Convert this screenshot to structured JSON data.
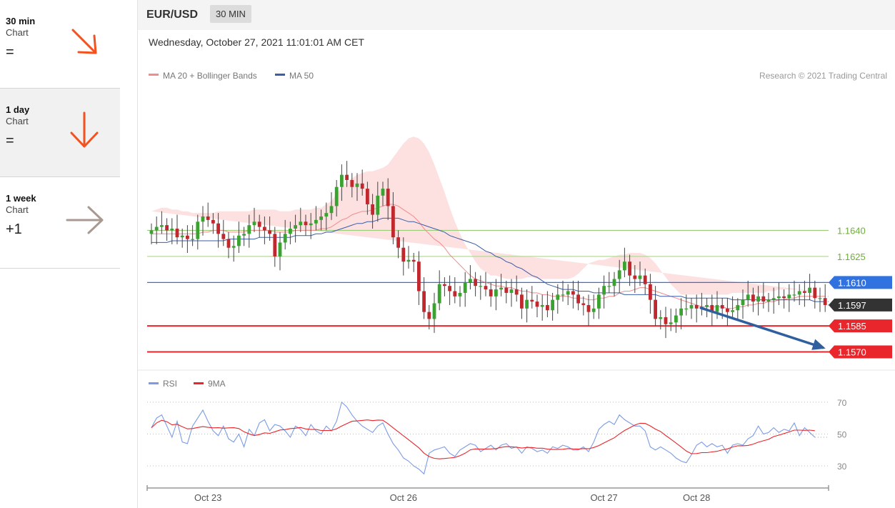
{
  "sidebar": {
    "items": [
      {
        "timeframe": "30 min",
        "label": "Chart",
        "symbol": "=",
        "arrow_color": "#f4511e",
        "arrow": "arrow-down-right-icon"
      },
      {
        "timeframe": "1 day",
        "label": "Chart",
        "symbol": "=",
        "arrow_color": "#f4511e",
        "arrow": "arrow-down-icon"
      },
      {
        "timeframe": "1 week",
        "label": "Chart",
        "symbol": "+1",
        "arrow_color": "#a89a90",
        "arrow": "arrow-right-icon"
      }
    ]
  },
  "header": {
    "pair": "EUR/USD",
    "timeframe_badge": "30 MIN",
    "datetime": "Wednesday, October 27, 2021 11:01:01 AM CET"
  },
  "chart_data": [
    {
      "type": "candlestick",
      "legend": [
        {
          "name": "MA 20 + Bollinger Bands",
          "color": "#f28c8c"
        },
        {
          "name": "MA 50",
          "color": "#3b5ea8"
        }
      ],
      "copyright": "Research © 2021 Trading Central",
      "ylim": [
        1.1562,
        1.172
      ],
      "x_ticks": [
        {
          "index": 11,
          "label": "Oct 23"
        },
        {
          "index": 49,
          "label": "Oct 26"
        },
        {
          "index": 88,
          "label": "Oct 27"
        },
        {
          "index": 106,
          "label": "Oct 28"
        }
      ],
      "levels": [
        {
          "value": 1.164,
          "label": "1.1640",
          "color": "#9bcc7a",
          "style": "line"
        },
        {
          "value": 1.1625,
          "label": "1.1625",
          "color": "#b7d99a",
          "style": "line"
        },
        {
          "value": 1.161,
          "label": "1.1610",
          "color": "#2f72e0",
          "style": "badge"
        },
        {
          "value": 1.1597,
          "label": "1.1597",
          "color": "#333333",
          "style": "badge-current"
        },
        {
          "value": 1.1585,
          "label": "1.1585",
          "color": "#e8262b",
          "style": "badge-thick"
        },
        {
          "value": 1.157,
          "label": "1.1570",
          "color": "#e8262b",
          "style": "badge-thick"
        }
      ],
      "forecast_arrow": {
        "from_index": 106,
        "from_value": 1.1597,
        "to_index": 116,
        "to_value": 1.157,
        "color": "#2f5f9e"
      },
      "series": {
        "close": [
          1.164,
          1.1642,
          1.1643,
          1.164,
          1.1641,
          1.1636,
          1.1637,
          1.1635,
          1.1635,
          1.1645,
          1.1648,
          1.1646,
          1.1644,
          1.1638,
          1.1635,
          1.163,
          1.1631,
          1.1637,
          1.1638,
          1.1643,
          1.1645,
          1.1642,
          1.164,
          1.1638,
          1.1625,
          1.1633,
          1.1638,
          1.1641,
          1.1643,
          1.1645,
          1.1643,
          1.1644,
          1.1646,
          1.1648,
          1.165,
          1.1654,
          1.1665,
          1.1672,
          1.1669,
          1.1665,
          1.1667,
          1.1664,
          1.1655,
          1.1649,
          1.166,
          1.1664,
          1.1654,
          1.1636,
          1.163,
          1.1622,
          1.1623,
          1.1622,
          1.1605,
          1.1593,
          1.1589,
          1.1598,
          1.1609,
          1.1608,
          1.1605,
          1.1602,
          1.1604,
          1.161,
          1.1612,
          1.1608,
          1.1608,
          1.1606,
          1.1602,
          1.1606,
          1.1607,
          1.1604,
          1.1606,
          1.1603,
          1.1595,
          1.16,
          1.1599,
          1.1596,
          1.1597,
          1.1594,
          1.16,
          1.1603,
          1.1603,
          1.1605,
          1.1603,
          1.1598,
          1.1597,
          1.1593,
          1.1595,
          1.1603,
          1.1608,
          1.1608,
          1.1612,
          1.1617,
          1.1622,
          1.1614,
          1.1612,
          1.1614,
          1.1609,
          1.16,
          1.1589,
          1.159,
          1.1586,
          1.1587,
          1.1591,
          1.1595,
          1.1595,
          1.1597,
          1.1595,
          1.1596,
          1.1597,
          1.1593,
          1.1597,
          1.1595,
          1.1593,
          1.1594,
          1.1597,
          1.16,
          1.1603,
          1.1599,
          1.1602,
          1.1599,
          1.16,
          1.1601,
          1.1602,
          1.1601,
          1.1603,
          1.1603,
          1.1605,
          1.1604,
          1.1607,
          1.1601,
          1.1601,
          1.1597
        ],
        "ma20": [
          1.1638,
          1.1638,
          1.1638,
          1.1638,
          1.1638,
          1.1638,
          1.1638,
          1.1638,
          1.1638,
          1.1638,
          1.1639,
          1.1639,
          1.164,
          1.164,
          1.164,
          1.1639,
          1.1639,
          1.1639,
          1.1639,
          1.164,
          1.164,
          1.164,
          1.164,
          1.164,
          1.1639,
          1.1639,
          1.1639,
          1.1639,
          1.164,
          1.164,
          1.164,
          1.164,
          1.164,
          1.1641,
          1.1641,
          1.1642,
          1.1644,
          1.1646,
          1.1647,
          1.1649,
          1.165,
          1.1651,
          1.1651,
          1.1652,
          1.1653,
          1.1654,
          1.1655,
          1.1655,
          1.1654,
          1.1652,
          1.165,
          1.1648,
          1.1645,
          1.1641,
          1.1638,
          1.1635,
          1.1633,
          1.163,
          1.1626,
          1.1623,
          1.162,
          1.1617,
          1.1614,
          1.1612,
          1.1611,
          1.161,
          1.1609,
          1.1608,
          1.1608,
          1.1607,
          1.1607,
          1.1606,
          1.1605,
          1.1605,
          1.1604,
          1.1604,
          1.1603,
          1.1603,
          1.1602,
          1.1602,
          1.1602,
          1.1602,
          1.1601,
          1.1601,
          1.1601,
          1.16,
          1.16,
          1.1601,
          1.1601,
          1.1602,
          1.1602,
          1.1604,
          1.1605,
          1.1605,
          1.1606,
          1.1607,
          1.1607,
          1.1606,
          1.1605,
          1.1604,
          1.1603,
          1.1602,
          1.1601,
          1.16,
          1.1599,
          1.1598,
          1.1597,
          1.1596,
          1.1596,
          1.1596,
          1.1596,
          1.1596,
          1.1595,
          1.1595,
          1.1596,
          1.1596,
          1.1597,
          1.1597,
          1.1598,
          1.1598,
          1.1599,
          1.1599,
          1.16,
          1.16,
          1.1601,
          1.1601,
          1.1602,
          1.1602,
          1.1602,
          1.1602,
          1.1602,
          1.1602
        ],
        "ma50": [
          1.1633,
          1.1633,
          1.1633,
          1.1633,
          1.1634,
          1.1634,
          1.1634,
          1.1634,
          1.1634,
          1.1634,
          1.1634,
          1.1634,
          1.1634,
          1.1634,
          1.1634,
          1.1635,
          1.1635,
          1.1635,
          1.1635,
          1.1635,
          1.1635,
          1.1636,
          1.1636,
          1.1636,
          1.1636,
          1.1636,
          1.1636,
          1.1636,
          1.1637,
          1.1637,
          1.1637,
          1.1637,
          1.1638,
          1.1638,
          1.1639,
          1.1639,
          1.164,
          1.1641,
          1.1642,
          1.1643,
          1.1644,
          1.1644,
          1.1645,
          1.1645,
          1.1646,
          1.1647,
          1.1647,
          1.1647,
          1.1647,
          1.1646,
          1.1645,
          1.1645,
          1.1644,
          1.1643,
          1.1642,
          1.1641,
          1.164,
          1.1639,
          1.1637,
          1.1636,
          1.1635,
          1.1634,
          1.1633,
          1.1632,
          1.163,
          1.1628,
          1.1627,
          1.1625,
          1.1624,
          1.1622,
          1.1621,
          1.1619,
          1.1618,
          1.1616,
          1.1614,
          1.1613,
          1.1611,
          1.1609,
          1.1608,
          1.1607,
          1.1606,
          1.1606,
          1.1606,
          1.1605,
          1.1605,
          1.1605,
          1.1604,
          1.1604,
          1.1604,
          1.1604,
          1.1604,
          1.1604,
          1.1603,
          1.1603,
          1.1603,
          1.1603,
          1.1603,
          1.1603,
          1.1603,
          1.1602,
          1.1602,
          1.1602,
          1.1602,
          1.1602,
          1.1601,
          1.1601,
          1.1601,
          1.1601,
          1.1601,
          1.1601,
          1.1601,
          1.1601,
          1.1601,
          1.16,
          1.16,
          1.16,
          1.16,
          1.16,
          1.16,
          1.16,
          1.16,
          1.16,
          1.16,
          1.16,
          1.16,
          1.16,
          1.16,
          1.16,
          1.16,
          1.1599,
          1.1599,
          1.1599
        ],
        "band_upper": [
          1.1651,
          1.1652,
          1.1653,
          1.1653,
          1.1652,
          1.1652,
          1.1651,
          1.1651,
          1.165,
          1.165,
          1.165,
          1.165,
          1.165,
          1.1651,
          1.1651,
          1.1651,
          1.1651,
          1.1651,
          1.1651,
          1.1651,
          1.1652,
          1.1652,
          1.1652,
          1.1652,
          1.1652,
          1.1651,
          1.1651,
          1.1651,
          1.1652,
          1.1652,
          1.1652,
          1.1652,
          1.1653,
          1.1653,
          1.1655,
          1.1657,
          1.1661,
          1.1665,
          1.1668,
          1.167,
          1.1672,
          1.1673,
          1.1674,
          1.1674,
          1.1675,
          1.1676,
          1.1678,
          1.1682,
          1.1686,
          1.169,
          1.1693,
          1.1694,
          1.1693,
          1.169,
          1.1685,
          1.1678,
          1.167,
          1.1662,
          1.1653,
          1.1645,
          1.1638,
          1.1632,
          1.1627,
          1.1622,
          1.1618,
          1.1616,
          1.1614,
          1.1614,
          1.1613,
          1.1612,
          1.1612,
          1.1612,
          1.1612,
          1.1613,
          1.1613,
          1.1612,
          1.1612,
          1.1612,
          1.1612,
          1.1612,
          1.1612,
          1.1612,
          1.1613,
          1.1615,
          1.1618,
          1.1621,
          1.1622,
          1.1623,
          1.1623,
          1.1624,
          1.1625,
          1.1626,
          1.1626,
          1.1627,
          1.1627,
          1.1627,
          1.1626,
          1.1624,
          1.1621,
          1.1617,
          1.1613,
          1.1609,
          1.1606,
          1.1603,
          1.1603,
          1.1603,
          1.1603,
          1.1603,
          1.1603,
          1.1603,
          1.1603,
          1.1603,
          1.1603,
          1.1604,
          1.1604,
          1.1604,
          1.1604,
          1.1604,
          1.1604,
          1.1604,
          1.1605,
          1.1605,
          1.1606,
          1.1606,
          1.1606,
          1.1606,
          1.1606,
          1.1605,
          1.1605,
          1.1605
        ],
        "band_lower": [
          1.1627,
          1.1626,
          1.1625,
          1.1624,
          1.1623,
          1.1623,
          1.1623,
          1.1624,
          1.1625,
          1.1626,
          1.1627,
          1.1628,
          1.1629,
          1.1629,
          1.1628,
          1.1627,
          1.1627,
          1.1627,
          1.1628,
          1.1628,
          1.1628,
          1.1628,
          1.1628,
          1.1628,
          1.1627,
          1.1627,
          1.1627,
          1.1627,
          1.1628,
          1.1628,
          1.1628,
          1.1628,
          1.1628,
          1.1629,
          1.163,
          1.1631,
          1.1631,
          1.1631,
          1.163,
          1.163,
          1.1629,
          1.1628,
          1.1626,
          1.1623,
          1.162,
          1.1618,
          1.1615,
          1.1611,
          1.1607,
          1.1603,
          1.1599,
          1.1596,
          1.1594,
          1.1592,
          1.1591,
          1.1591,
          1.159,
          1.1589,
          1.1588,
          1.1587,
          1.1587,
          1.1587,
          1.1587,
          1.1588,
          1.159,
          1.1592,
          1.1595,
          1.1597,
          1.1598,
          1.1599,
          1.1599,
          1.1599,
          1.1598,
          1.1597,
          1.1596,
          1.1595,
          1.1594,
          1.1593,
          1.1592,
          1.1592,
          1.1592,
          1.1591,
          1.1591,
          1.159,
          1.159,
          1.159,
          1.159,
          1.159,
          1.159,
          1.1589,
          1.1589,
          1.1589,
          1.1588,
          1.1587,
          1.1586,
          1.1585,
          1.1583,
          1.1582,
          1.1582,
          1.1581,
          1.1581,
          1.1582,
          1.1583,
          1.1584,
          1.1586,
          1.1587,
          1.1588,
          1.1589,
          1.159,
          1.1591,
          1.1592,
          1.1592,
          1.1593,
          1.1593,
          1.1594,
          1.1594,
          1.1594,
          1.1595,
          1.1595,
          1.1595,
          1.1595,
          1.1595,
          1.1595,
          1.1596,
          1.1597,
          1.1597,
          1.1597,
          1.1597,
          1.1598,
          1.1598,
          1.1598,
          1.1598
        ]
      }
    },
    {
      "type": "line",
      "legend": [
        {
          "name": "RSI",
          "color": "#7b9be6"
        },
        {
          "name": "9MA",
          "color": "#e8262b"
        }
      ],
      "ylim": [
        22,
        78
      ],
      "y_ticks": [
        70,
        50,
        30
      ],
      "series": {
        "rsi": [
          54,
          60,
          62,
          55,
          48,
          58,
          45,
          44,
          55,
          60,
          65,
          58,
          52,
          49,
          55,
          47,
          45,
          50,
          42,
          53,
          49,
          57,
          59,
          52,
          56,
          55,
          52,
          48,
          55,
          53,
          49,
          56,
          52,
          50,
          55,
          52,
          58,
          70,
          67,
          62,
          58,
          55,
          53,
          51,
          55,
          57,
          50,
          44,
          40,
          35,
          33,
          30,
          28,
          25,
          38,
          40,
          41,
          42,
          38,
          36,
          40,
          42,
          44,
          43,
          39,
          41,
          43,
          40,
          43,
          44,
          41,
          42,
          38,
          42,
          41,
          39,
          40,
          38,
          42,
          41,
          43,
          42,
          40,
          40,
          42,
          39,
          45,
          53,
          56,
          58,
          56,
          62,
          59,
          57,
          55,
          55,
          52,
          42,
          40,
          42,
          40,
          38,
          35,
          33,
          32,
          37,
          43,
          45,
          42,
          44,
          42,
          43,
          38,
          43,
          44,
          43,
          47,
          49,
          55,
          50,
          51,
          54,
          51,
          53,
          52,
          57,
          49,
          54,
          51,
          48
        ]
      }
    }
  ]
}
